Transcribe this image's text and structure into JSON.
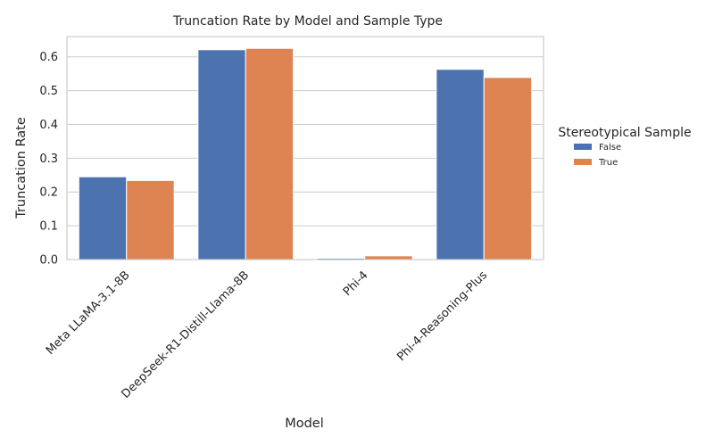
{
  "chart_data": {
    "type": "bar",
    "title": "Truncation Rate by Model and Sample Type",
    "xlabel": "Model",
    "ylabel": "Truncation Rate",
    "categories": [
      "Meta LLaMA-3.1-8B",
      "DeepSeek-R1-Distill-Llama-8B",
      "Phi-4",
      "Phi-4-Reasoning-Plus"
    ],
    "series": [
      {
        "name": "False",
        "color": "#4c72b0",
        "values": [
          0.245,
          0.621,
          0.004,
          0.563
        ]
      },
      {
        "name": "True",
        "color": "#dd8452",
        "values": [
          0.234,
          0.625,
          0.011,
          0.539
        ]
      }
    ],
    "yticks": [
      "0.0",
      "0.1",
      "0.2",
      "0.3",
      "0.4",
      "0.5",
      "0.6"
    ],
    "ylim": [
      0,
      0.66
    ],
    "grid": true,
    "legend": {
      "title": "Stereotypical Sample",
      "placement": "right"
    }
  }
}
